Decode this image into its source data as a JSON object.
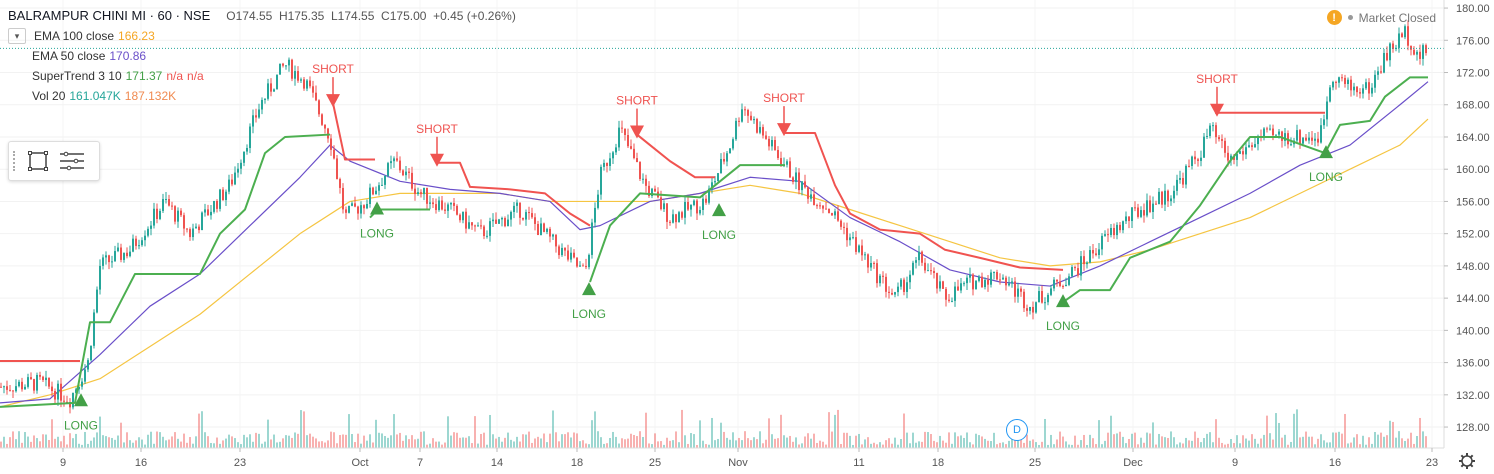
{
  "header": {
    "title": "BALRAMPUR CHINI MI · 60 · NSE",
    "ohlc": "O174.55  H175.35  L174.55  C175.00  +0.45 (+0.26%)",
    "market_status": "Market Closed"
  },
  "indicators": {
    "ema100_label": "EMA 100 close",
    "ema100_value": "166.23",
    "ema50_label": "EMA 50 close",
    "ema50_value": "170.86",
    "supertrend_label": "SuperTrend 3 10",
    "supertrend_value": "171.37",
    "supertrend_na1": "n/a",
    "supertrend_na2": "n/a",
    "vol_label": "Vol 20",
    "vol_value1": "161.047K",
    "vol_value2": "187.132K"
  },
  "badge": {
    "d": "D"
  },
  "colors": {
    "up": "#26a69a",
    "down": "#ef5350",
    "ema100": "#f5c542",
    "ema50": "#6a4fc9",
    "st_long": "#4caf50",
    "st_short": "#f05350",
    "signal_long": "#43a047",
    "signal_short": "#ef5350",
    "last_price": "#131722",
    "icon": "#444444"
  },
  "icons": {
    "chevron": "chevron-down-icon",
    "rect": "rectangle-tool-icon",
    "lines": "lines-tool-icon",
    "gear": "gear-icon",
    "warn": "warning-icon"
  },
  "chart_data": {
    "type": "candlestick",
    "symbol": "BALRAMPUR CHINI MI",
    "interval": "60",
    "y_axis_ticks": [
      128,
      132,
      136,
      140,
      144,
      148,
      152,
      156,
      160,
      164,
      168,
      172,
      176,
      180
    ],
    "ylim": [
      125.4,
      181.0
    ],
    "last_price": 175.0,
    "last_price_label": "175.00",
    "x_axis_ticks": [
      "9",
      "16",
      "23",
      "Oct",
      "7",
      "14",
      "18",
      "25",
      "Nov",
      "11",
      "18",
      "25",
      "Dec",
      "9",
      "16",
      "23"
    ],
    "ema100_points": [
      [
        0,
        130.5
      ],
      [
        50,
        132
      ],
      [
        100,
        134
      ],
      [
        150,
        138
      ],
      [
        200,
        142
      ],
      [
        250,
        147
      ],
      [
        300,
        152
      ],
      [
        350,
        156
      ],
      [
        400,
        157
      ],
      [
        450,
        157
      ],
      [
        500,
        157
      ],
      [
        550,
        156
      ],
      [
        600,
        156
      ],
      [
        650,
        156
      ],
      [
        700,
        157
      ],
      [
        750,
        158
      ],
      [
        800,
        157
      ],
      [
        850,
        155
      ],
      [
        900,
        153
      ],
      [
        950,
        151
      ],
      [
        1000,
        149
      ],
      [
        1050,
        148
      ],
      [
        1100,
        148.5
      ],
      [
        1150,
        150
      ],
      [
        1200,
        152
      ],
      [
        1250,
        154
      ],
      [
        1300,
        157
      ],
      [
        1350,
        160
      ],
      [
        1400,
        163
      ],
      [
        1428,
        166.23
      ]
    ],
    "ema50_points": [
      [
        0,
        131
      ],
      [
        50,
        131.5
      ],
      [
        100,
        137
      ],
      [
        150,
        143
      ],
      [
        200,
        147
      ],
      [
        250,
        153
      ],
      [
        300,
        159
      ],
      [
        330,
        163
      ],
      [
        350,
        161
      ],
      [
        400,
        158.5
      ],
      [
        450,
        157.5
      ],
      [
        500,
        157
      ],
      [
        550,
        156
      ],
      [
        580,
        152.5
      ],
      [
        600,
        153
      ],
      [
        650,
        156
      ],
      [
        700,
        157
      ],
      [
        750,
        159
      ],
      [
        800,
        158.5
      ],
      [
        850,
        154
      ],
      [
        900,
        151
      ],
      [
        950,
        147.5
      ],
      [
        1000,
        146
      ],
      [
        1050,
        145.5
      ],
      [
        1100,
        148
      ],
      [
        1150,
        151
      ],
      [
        1200,
        154
      ],
      [
        1250,
        157
      ],
      [
        1300,
        160.5
      ],
      [
        1350,
        163
      ],
      [
        1400,
        168
      ],
      [
        1428,
        170.86
      ]
    ],
    "supertrend_long_segments": [
      [
        [
          0,
          130.5
        ],
        [
          75,
          131
        ],
        [
          90,
          141
        ],
        [
          110,
          141
        ],
        [
          135,
          147
        ],
        [
          200,
          147
        ],
        [
          220,
          152
        ],
        [
          245,
          155
        ],
        [
          265,
          162
        ],
        [
          285,
          164
        ],
        [
          330,
          164.3
        ]
      ],
      [
        [
          370,
          154
        ],
        [
          378,
          155
        ],
        [
          430,
          155
        ]
      ],
      [
        [
          590,
          146
        ],
        [
          610,
          153
        ],
        [
          640,
          157
        ],
        [
          700,
          156.5
        ],
        [
          740,
          160.5
        ],
        [
          785,
          160.5
        ]
      ],
      [
        [
          1063,
          143.5
        ],
        [
          1080,
          145
        ],
        [
          1110,
          145
        ],
        [
          1130,
          149
        ],
        [
          1170,
          151
        ],
        [
          1200,
          155.5
        ],
        [
          1230,
          161
        ],
        [
          1250,
          164
        ],
        [
          1280,
          164
        ],
        [
          1325,
          162
        ],
        [
          1340,
          165.5
        ],
        [
          1370,
          166
        ],
        [
          1385,
          169
        ],
        [
          1410,
          171.4
        ],
        [
          1428,
          171.4
        ]
      ]
    ],
    "supertrend_short_segments": [
      [
        [
          0,
          136.2
        ],
        [
          80,
          136.2
        ]
      ],
      [
        [
          333,
          168.2
        ],
        [
          345,
          161.2
        ],
        [
          375,
          161.2
        ]
      ],
      [
        [
          438,
          160.8
        ],
        [
          460,
          160.8
        ],
        [
          470,
          157.8
        ],
        [
          510,
          157.5
        ],
        [
          545,
          157
        ],
        [
          570,
          154.5
        ],
        [
          590,
          153
        ]
      ],
      [
        [
          637,
          164.3
        ],
        [
          650,
          163
        ],
        [
          670,
          161
        ],
        [
          695,
          159
        ],
        [
          715,
          159
        ]
      ],
      [
        [
          785,
          164.5
        ],
        [
          815,
          164.5
        ],
        [
          835,
          158
        ],
        [
          850,
          154.5
        ],
        [
          880,
          152.5
        ],
        [
          920,
          152
        ],
        [
          945,
          150
        ],
        [
          980,
          149
        ],
        [
          1020,
          147.8
        ],
        [
          1063,
          147.5
        ]
      ],
      [
        [
          1215,
          167
        ],
        [
          1325,
          167
        ]
      ]
    ],
    "signals": [
      {
        "label": "LONG",
        "x": 81,
        "y": 131.2,
        "dir": "up"
      },
      {
        "label": "SHORT",
        "x": 333,
        "y": 168.2,
        "dir": "down"
      },
      {
        "label": "LONG",
        "x": 377,
        "y": 155.0,
        "dir": "up"
      },
      {
        "label": "SHORT",
        "x": 437,
        "y": 160.8,
        "dir": "down"
      },
      {
        "label": "LONG",
        "x": 589,
        "y": 145.0,
        "dir": "up"
      },
      {
        "label": "SHORT",
        "x": 637,
        "y": 164.3,
        "dir": "down"
      },
      {
        "label": "LONG",
        "x": 719,
        "y": 154.8,
        "dir": "up"
      },
      {
        "label": "SHORT",
        "x": 784,
        "y": 164.6,
        "dir": "down"
      },
      {
        "label": "LONG",
        "x": 1063,
        "y": 143.5,
        "dir": "up"
      },
      {
        "label": "SHORT",
        "x": 1217,
        "y": 167.0,
        "dir": "down"
      },
      {
        "label": "LONG",
        "x": 1326,
        "y": 162.0,
        "dir": "up"
      }
    ],
    "price_path": [
      [
        0,
        133
      ],
      [
        40,
        133.5
      ],
      [
        70,
        131.5
      ],
      [
        88,
        136
      ],
      [
        100,
        148
      ],
      [
        130,
        150
      ],
      [
        165,
        156
      ],
      [
        190,
        152
      ],
      [
        230,
        158
      ],
      [
        260,
        168
      ],
      [
        285,
        173
      ],
      [
        305,
        171
      ],
      [
        330,
        164
      ],
      [
        345,
        154
      ],
      [
        365,
        156
      ],
      [
        395,
        161
      ],
      [
        420,
        157
      ],
      [
        450,
        155
      ],
      [
        480,
        152
      ],
      [
        520,
        155
      ],
      [
        560,
        150
      ],
      [
        585,
        147
      ],
      [
        600,
        159
      ],
      [
        620,
        165
      ],
      [
        645,
        158
      ],
      [
        670,
        154
      ],
      [
        705,
        156
      ],
      [
        730,
        163
      ],
      [
        742,
        168
      ],
      [
        770,
        163
      ],
      [
        800,
        158
      ],
      [
        830,
        155
      ],
      [
        870,
        148
      ],
      [
        895,
        144
      ],
      [
        920,
        149
      ],
      [
        945,
        144
      ],
      [
        970,
        146
      ],
      [
        1000,
        147
      ],
      [
        1030,
        143
      ],
      [
        1060,
        146
      ],
      [
        1080,
        148
      ],
      [
        1110,
        152
      ],
      [
        1140,
        155
      ],
      [
        1170,
        157
      ],
      [
        1200,
        162
      ],
      [
        1210,
        165
      ],
      [
        1230,
        161
      ],
      [
        1260,
        164
      ],
      [
        1300,
        164
      ],
      [
        1320,
        164
      ],
      [
        1332,
        172
      ],
      [
        1350,
        170
      ],
      [
        1370,
        170
      ],
      [
        1385,
        174
      ],
      [
        1405,
        177
      ],
      [
        1420,
        174
      ],
      [
        1428,
        175
      ]
    ]
  }
}
